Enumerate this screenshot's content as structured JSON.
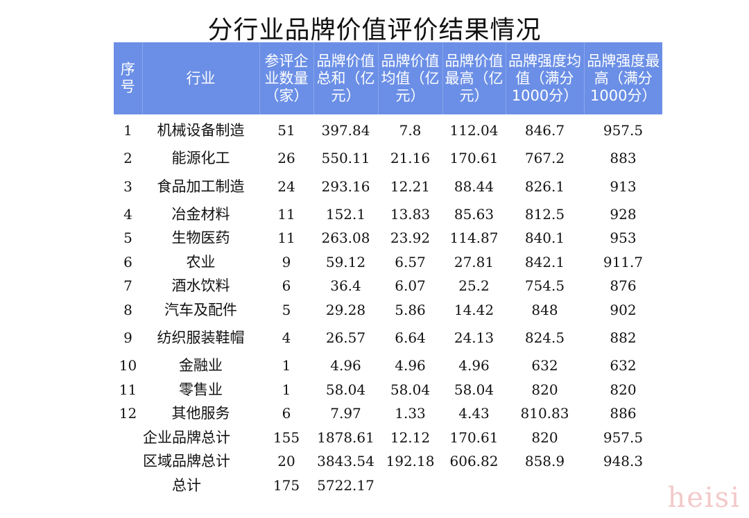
{
  "title": "分行业品牌价值评价结果情况",
  "headers": [
    "序号",
    "行业",
    "参评企业数量（家）",
    "品牌价值总和（亿元）",
    "品牌价值均值（亿元）",
    "品牌价值最高（亿元）",
    "品牌强度均值（满分1000分）",
    "品牌强度最高（满分1000分）"
  ],
  "rows": [
    {
      "no": "1",
      "industry": "机械设备制造",
      "count": "51",
      "sum": "397.84",
      "avg": "7.8",
      "max": "112.04",
      "strength_avg": "846.7",
      "strength_max": "957.5"
    },
    {
      "no": "2",
      "industry": "能源化工",
      "count": "26",
      "sum": "550.11",
      "avg": "21.16",
      "max": "170.61",
      "strength_avg": "767.2",
      "strength_max": "883"
    },
    {
      "no": "3",
      "industry": "食品加工制造",
      "count": "24",
      "sum": "293.16",
      "avg": "12.21",
      "max": "88.44",
      "strength_avg": "826.1",
      "strength_max": "913"
    },
    {
      "no": "4",
      "industry": "冶金材料",
      "count": "11",
      "sum": "152.1",
      "avg": "13.83",
      "max": "85.63",
      "strength_avg": "812.5",
      "strength_max": "928"
    },
    {
      "no": "5",
      "industry": "生物医药",
      "count": "11",
      "sum": "263.08",
      "avg": "23.92",
      "max": "114.87",
      "strength_avg": "840.1",
      "strength_max": "953"
    },
    {
      "no": "6",
      "industry": "农业",
      "count": "9",
      "sum": "59.12",
      "avg": "6.57",
      "max": "27.81",
      "strength_avg": "842.1",
      "strength_max": "911.7"
    },
    {
      "no": "7",
      "industry": "酒水饮料",
      "count": "6",
      "sum": "36.4",
      "avg": "6.07",
      "max": "25.2",
      "strength_avg": "754.5",
      "strength_max": "876"
    },
    {
      "no": "8",
      "industry": "汽车及配件",
      "count": "5",
      "sum": "29.28",
      "avg": "5.86",
      "max": "14.42",
      "strength_avg": "848",
      "strength_max": "902"
    },
    {
      "no": "9",
      "industry": "纺织服装鞋帽",
      "count": "4",
      "sum": "26.57",
      "avg": "6.64",
      "max": "24.13",
      "strength_avg": "824.5",
      "strength_max": "882"
    },
    {
      "no": "10",
      "industry": "金融业",
      "count": "1",
      "sum": "4.96",
      "avg": "4.96",
      "max": "4.96",
      "strength_avg": "632",
      "strength_max": "632"
    },
    {
      "no": "11",
      "industry": "零售业",
      "count": "1",
      "sum": "58.04",
      "avg": "58.04",
      "max": "58.04",
      "strength_avg": "820",
      "strength_max": "820"
    },
    {
      "no": "12",
      "industry": "其他服务",
      "count": "6",
      "sum": "7.97",
      "avg": "1.33",
      "max": "4.43",
      "strength_avg": "810.83",
      "strength_max": "886"
    }
  ],
  "totals": [
    {
      "label": "企业品牌总计",
      "count": "155",
      "sum": "1878.61",
      "avg": "12.12",
      "max": "170.61",
      "strength_avg": "820",
      "strength_max": "957.5"
    },
    {
      "label": "区域品牌总计",
      "count": "20",
      "sum": "3843.54",
      "avg": "192.18",
      "max": "606.82",
      "strength_avg": "858.9",
      "strength_max": "948.3"
    },
    {
      "label": "总计",
      "count": "175",
      "sum": "5722.17",
      "avg": "",
      "max": "",
      "strength_avg": "",
      "strength_max": ""
    }
  ],
  "watermark": "heisi"
}
